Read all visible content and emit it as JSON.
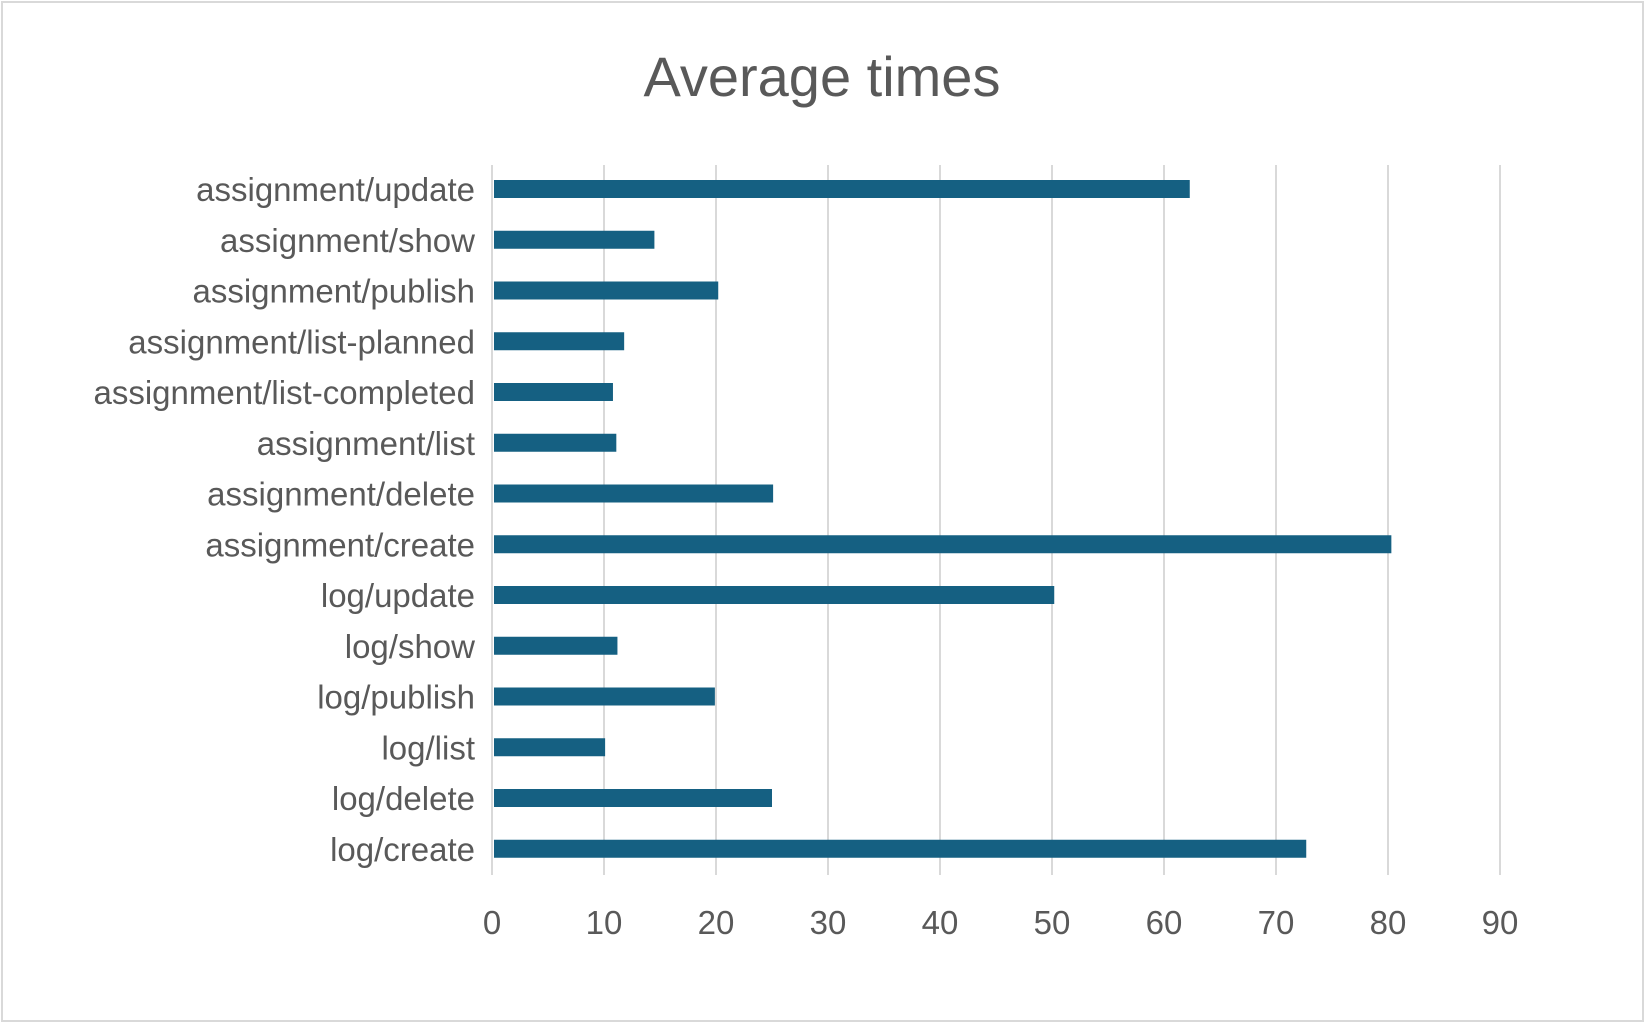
{
  "chart_data": {
    "type": "bar",
    "orientation": "horizontal",
    "title": "Average times",
    "xlabel": "",
    "ylabel": "",
    "categories": [
      "assignment/update",
      "assignment/show",
      "assignment/publish",
      "assignment/list-planned",
      "assignment/list-completed",
      "assignment/list",
      "assignment/delete",
      "assignment/create",
      "log/update",
      "log/show",
      "log/publish",
      "log/list",
      "log/delete",
      "log/create"
    ],
    "values": [
      62.3,
      14.5,
      20.2,
      11.8,
      10.8,
      11.1,
      25.1,
      80.3,
      50.2,
      11.2,
      19.9,
      10.1,
      25.0,
      72.7
    ],
    "xlim": [
      0,
      90
    ],
    "xticks": [
      "0",
      "10",
      "20",
      "30",
      "40",
      "50",
      "60",
      "70",
      "80",
      "90"
    ],
    "grid": true,
    "legend": "none",
    "colors": {
      "bar": "#156082",
      "grid": "#d9d9d9",
      "text": "#595959",
      "border": "#d9d9d9"
    }
  }
}
